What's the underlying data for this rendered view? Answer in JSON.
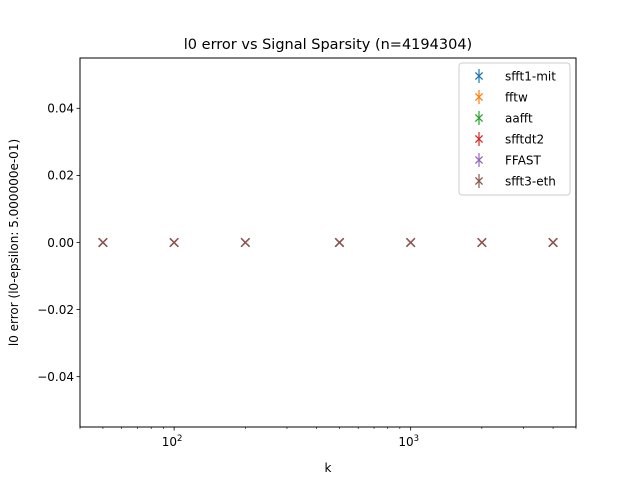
{
  "chart_data": {
    "type": "scatter",
    "title": "l0 error vs Signal Sparsity (n=4194304)",
    "xlabel": "k",
    "ylabel": "l0 error (l0-epsilon: 5.000000e-01)",
    "xscale": "log",
    "xlim": [
      40,
      5000
    ],
    "ylim": [
      -0.055,
      0.055
    ],
    "x_major_ticks": [
      {
        "value": 100,
        "base": "10",
        "exp": "2"
      },
      {
        "value": 1000,
        "base": "10",
        "exp": "3"
      }
    ],
    "y_ticks": [
      {
        "value": -0.04,
        "label": "−0.04"
      },
      {
        "value": -0.02,
        "label": "−0.02"
      },
      {
        "value": 0.0,
        "label": "0.00"
      },
      {
        "value": 0.02,
        "label": "0.02"
      },
      {
        "value": 0.04,
        "label": "0.04"
      }
    ],
    "grid": false,
    "legend_position": "upper right",
    "x": [
      50,
      100,
      200,
      500,
      1000,
      2000,
      4000
    ],
    "series": [
      {
        "name": "sfft1-mit",
        "color": "#1f77b4",
        "values": [
          0,
          0,
          0,
          0,
          0,
          0,
          0
        ]
      },
      {
        "name": "fftw",
        "color": "#ff7f0e",
        "values": [
          0,
          0,
          0,
          0,
          0,
          0,
          0
        ]
      },
      {
        "name": "aafft",
        "color": "#2ca02c",
        "values": [
          0,
          0,
          0,
          0,
          0,
          0,
          0
        ]
      },
      {
        "name": "sfftdt2",
        "color": "#d62728",
        "values": [
          0,
          0,
          0,
          0,
          0,
          0,
          0
        ]
      },
      {
        "name": "FFAST",
        "color": "#9467bd",
        "values": [
          0,
          0,
          0,
          0,
          0,
          0,
          0
        ]
      },
      {
        "name": "sfft3-eth",
        "color": "#8c564b",
        "values": [
          0,
          0,
          0,
          0,
          0,
          0,
          0
        ]
      }
    ]
  }
}
